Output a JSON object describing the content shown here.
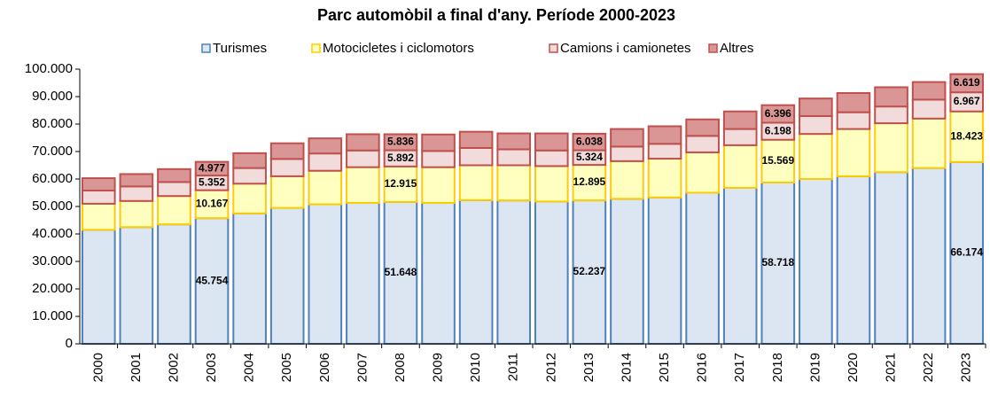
{
  "chart_data": {
    "type": "stacked_bar",
    "title": "Parc automòbil a final d'any. Període 2000-2023",
    "categories": [
      "2000",
      "2001",
      "2002",
      "2003",
      "2004",
      "2005",
      "2006",
      "2007",
      "2008",
      "2009",
      "2010",
      "2011",
      "2012",
      "2013",
      "2014",
      "2015",
      "2016",
      "2017",
      "2018",
      "2019",
      "2020",
      "2021",
      "2022",
      "2023"
    ],
    "ylim": [
      0,
      100000
    ],
    "yticks": [
      0,
      {
        "value": 10000,
        "label": "10.000"
      },
      {
        "value": 20000,
        "label": "20.000"
      },
      {
        "value": 30000,
        "label": "30.000"
      },
      {
        "value": 40000,
        "label": "40.000"
      },
      {
        "value": 50000,
        "label": "50.000"
      },
      {
        "value": 60000,
        "label": "60.000"
      },
      {
        "value": 70000,
        "label": "70.000"
      },
      {
        "value": 80000,
        "label": "80.000"
      },
      {
        "value": 90000,
        "label": "90.000"
      },
      {
        "value": 100000,
        "label": "100.000"
      }
    ],
    "legend": "top",
    "series": [
      {
        "name": "Turismes",
        "color": "#dce6f2",
        "border": "#4f81bd",
        "values": [
          41500,
          42500,
          43500,
          45754,
          47500,
          49500,
          50800,
          51300,
          51648,
          51300,
          52300,
          52200,
          51800,
          52237,
          52800,
          53300,
          55000,
          56800,
          58718,
          60000,
          61000,
          62500,
          64000,
          66174
        ],
        "value_labels": [
          null,
          null,
          null,
          "45.754",
          null,
          null,
          null,
          null,
          "51.648",
          null,
          null,
          null,
          null,
          "52.237",
          null,
          null,
          null,
          null,
          "58.718",
          null,
          null,
          null,
          null,
          "66.174"
        ]
      },
      {
        "name": "Motocicletes i ciclomotors",
        "color": "#ffffc0",
        "border": "#ffcc00",
        "values": [
          9500,
          9500,
          10300,
          10167,
          10800,
          11500,
          12200,
          13000,
          12915,
          13000,
          12700,
          12800,
          12900,
          12895,
          13700,
          14100,
          14700,
          15500,
          15569,
          16400,
          17200,
          17800,
          18000,
          18423
        ],
        "value_labels": [
          null,
          null,
          null,
          "10.167",
          null,
          null,
          null,
          null,
          "12.915",
          null,
          null,
          null,
          null,
          "12.895",
          null,
          null,
          null,
          null,
          "15.569",
          null,
          null,
          null,
          null,
          "18.423"
        ]
      },
      {
        "name": "Camions i camionetes",
        "color": "#f2dcdb",
        "border": "#c0504d",
        "values": [
          4800,
          5300,
          5100,
          5352,
          5700,
          6300,
          6300,
          6100,
          5892,
          5900,
          6300,
          5800,
          5700,
          5324,
          5300,
          5400,
          6000,
          5900,
          6198,
          6500,
          6100,
          6100,
          6900,
          6967
        ],
        "value_labels": [
          null,
          null,
          null,
          "5.352",
          null,
          null,
          null,
          null,
          "5.892",
          null,
          null,
          null,
          null,
          "5.324",
          null,
          null,
          null,
          null,
          "6.198",
          null,
          null,
          null,
          null,
          "6.967"
        ]
      },
      {
        "name": "Altres",
        "color": "#d99694",
        "border": "#c0504d",
        "values": [
          4500,
          4500,
          4700,
          4977,
          5400,
          5700,
          5500,
          5900,
          5836,
          6000,
          5900,
          5800,
          6200,
          6038,
          6400,
          6400,
          6000,
          6400,
          6396,
          6400,
          7000,
          7000,
          6400,
          6619
        ],
        "value_labels": [
          null,
          null,
          null,
          "4.977",
          null,
          null,
          null,
          null,
          "5.836",
          null,
          null,
          null,
          null,
          "6.038",
          null,
          null,
          null,
          null,
          "6.396",
          null,
          null,
          null,
          null,
          "6.619"
        ]
      }
    ]
  }
}
